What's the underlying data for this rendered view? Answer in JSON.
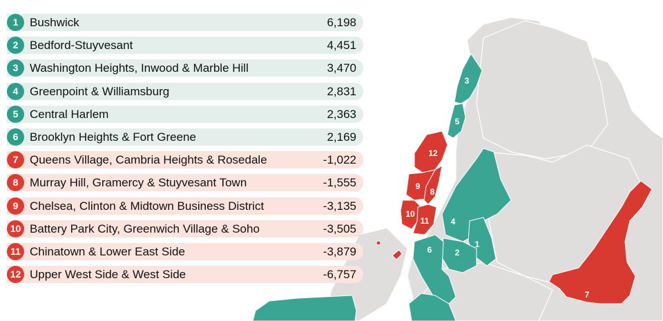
{
  "colors": {
    "gain": "#3aa593",
    "loss": "#d83a31",
    "land": "#e0dedc",
    "gain_row_bg": "#e4efec",
    "loss_row_bg": "#fbe3de"
  },
  "rankings": [
    {
      "rank": "1",
      "name": "Bushwick",
      "value": "6,198",
      "trend": "gain"
    },
    {
      "rank": "2",
      "name": "Bedford-Stuyvesant",
      "value": "4,451",
      "trend": "gain"
    },
    {
      "rank": "3",
      "name": "Washington Heights, Inwood & Marble Hill",
      "value": "3,470",
      "trend": "gain"
    },
    {
      "rank": "4",
      "name": "Greenpoint & Williamsburg",
      "value": "2,831",
      "trend": "gain"
    },
    {
      "rank": "5",
      "name": "Central Harlem",
      "value": "2,363",
      "trend": "gain"
    },
    {
      "rank": "6",
      "name": "Brooklyn Heights & Fort Greene",
      "value": "2,169",
      "trend": "gain"
    },
    {
      "rank": "7",
      "name": "Queens Village, Cambria Heights & Rosedale",
      "value": "-1,022",
      "trend": "loss"
    },
    {
      "rank": "8",
      "name": "Murray Hill, Gramercy & Stuyvesant Town",
      "value": "-1,555",
      "trend": "loss"
    },
    {
      "rank": "9",
      "name": "Chelsea, Clinton & Midtown Business District",
      "value": "-3,135",
      "trend": "loss"
    },
    {
      "rank": "10",
      "name": "Battery Park City, Greenwich Village & Soho",
      "value": "-3,505",
      "trend": "loss"
    },
    {
      "rank": "11",
      "name": "Chinatown & Lower East Side",
      "value": "-3,879",
      "trend": "loss"
    },
    {
      "rank": "12",
      "name": "Upper West Side & West Side",
      "value": "-6,757",
      "trend": "loss"
    }
  ],
  "map_labels": {
    "d1": "1",
    "d2": "2",
    "d3": "3",
    "d4": "4",
    "d5": "5",
    "d6": "6",
    "d7": "7",
    "d8": "8",
    "d9": "9",
    "d10": "10",
    "d11": "11",
    "d12": "12"
  }
}
